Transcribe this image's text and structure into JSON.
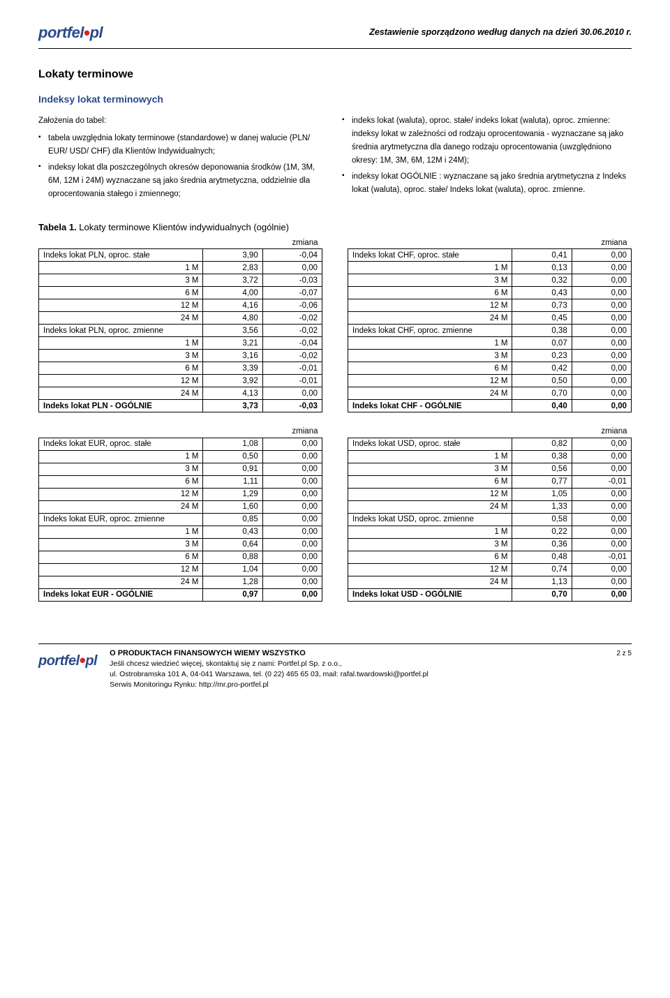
{
  "header": {
    "logo_main": "portfel",
    "logo_suffix": "pl",
    "meta_text": "Zestawienie sporządzono według danych na dzień 30.06.2010 r."
  },
  "section_title": "Lokaty terminowe",
  "subheading": "Indeksy lokat terminowych",
  "assumptions_title": "Założenia do tabel:",
  "left_bullets": [
    "tabela uwzględnia lokaty terminowe (standardowe) w danej walucie (PLN/ EUR/ USD/ CHF) dla Klientów Indywidualnych;",
    "indeksy lokat dla poszczególnych okresów deponowania środków (1M, 3M, 6M, 12M i 24M) wyznaczane są jako średnia arytmetyczna, oddzielnie dla oprocentowania stałego i zmiennego;"
  ],
  "right_bullets": [
    "indeks lokat (waluta), oproc. stałe/ indeks lokat (waluta), oproc. zmienne: indeksy lokat w zależności od rodzaju oprocentowania - wyznaczane są jako średnia arytmetyczna dla danego rodzaju oprocentowania (uwzględniono okresy: 1M, 3M, 6M, 12M i 24M);",
    "indeksy lokat OGÓLNIE : wyznaczane są jako średnia arytmetyczna z Indeks lokat (waluta), oproc. stałe/ Indeks lokat (waluta), oproc. zmienne."
  ],
  "table1_title_prefix": "Tabela 1.",
  "table1_title_rest": " Lokaty terminowe Klientów indywidualnych (ogólnie)",
  "zmiana_label": "zmiana",
  "tables": {
    "pln": {
      "rows": [
        {
          "label": "Indeks lokat PLN, oproc. stałe",
          "v": "3,90",
          "d": "-0,04",
          "align": "label"
        },
        {
          "label": "1 M",
          "v": "2,83",
          "d": "0,00",
          "align": "rlabel"
        },
        {
          "label": "3 M",
          "v": "3,72",
          "d": "-0,03",
          "align": "rlabel"
        },
        {
          "label": "6 M",
          "v": "4,00",
          "d": "-0,07",
          "align": "rlabel"
        },
        {
          "label": "12 M",
          "v": "4,16",
          "d": "-0,06",
          "align": "rlabel"
        },
        {
          "label": "24 M",
          "v": "4,80",
          "d": "-0,02",
          "align": "rlabel"
        },
        {
          "label": "Indeks lokat PLN, oproc. zmienne",
          "v": "3,56",
          "d": "-0,02",
          "align": "label"
        },
        {
          "label": "1 M",
          "v": "3,21",
          "d": "-0,04",
          "align": "rlabel"
        },
        {
          "label": "3 M",
          "v": "3,16",
          "d": "-0,02",
          "align": "rlabel"
        },
        {
          "label": "6 M",
          "v": "3,39",
          "d": "-0,01",
          "align": "rlabel"
        },
        {
          "label": "12 M",
          "v": "3,92",
          "d": "-0,01",
          "align": "rlabel"
        },
        {
          "label": "24 M",
          "v": "4,13",
          "d": "0,00",
          "align": "rlabel"
        }
      ],
      "total": {
        "label": "Indeks lokat PLN - OGÓLNIE",
        "v": "3,73",
        "d": "-0,03"
      }
    },
    "chf": {
      "rows": [
        {
          "label": "Indeks lokat CHF, oproc. stałe",
          "v": "0,41",
          "d": "0,00",
          "align": "label"
        },
        {
          "label": "1 M",
          "v": "0,13",
          "d": "0,00",
          "align": "rlabel"
        },
        {
          "label": "3 M",
          "v": "0,32",
          "d": "0,00",
          "align": "rlabel"
        },
        {
          "label": "6 M",
          "v": "0,43",
          "d": "0,00",
          "align": "rlabel"
        },
        {
          "label": "12 M",
          "v": "0,73",
          "d": "0,00",
          "align": "rlabel"
        },
        {
          "label": "24 M",
          "v": "0,45",
          "d": "0,00",
          "align": "rlabel"
        },
        {
          "label": "Indeks lokat CHF, oproc. zmienne",
          "v": "0,38",
          "d": "0,00",
          "align": "label"
        },
        {
          "label": "1 M",
          "v": "0,07",
          "d": "0,00",
          "align": "rlabel"
        },
        {
          "label": "3 M",
          "v": "0,23",
          "d": "0,00",
          "align": "rlabel"
        },
        {
          "label": "6 M",
          "v": "0,42",
          "d": "0,00",
          "align": "rlabel"
        },
        {
          "label": "12 M",
          "v": "0,50",
          "d": "0,00",
          "align": "rlabel"
        },
        {
          "label": "24 M",
          "v": "0,70",
          "d": "0,00",
          "align": "rlabel"
        }
      ],
      "total": {
        "label": "Indeks lokat CHF - OGÓLNIE",
        "v": "0,40",
        "d": "0,00"
      }
    },
    "eur": {
      "rows": [
        {
          "label": "Indeks lokat EUR, oproc. stałe",
          "v": "1,08",
          "d": "0,00",
          "align": "label"
        },
        {
          "label": "1 M",
          "v": "0,50",
          "d": "0,00",
          "align": "rlabel"
        },
        {
          "label": "3 M",
          "v": "0,91",
          "d": "0,00",
          "align": "rlabel"
        },
        {
          "label": "6 M",
          "v": "1,11",
          "d": "0,00",
          "align": "rlabel"
        },
        {
          "label": "12 M",
          "v": "1,29",
          "d": "0,00",
          "align": "rlabel"
        },
        {
          "label": "24 M",
          "v": "1,60",
          "d": "0,00",
          "align": "rlabel"
        },
        {
          "label": "Indeks lokat EUR, oproc. zmienne",
          "v": "0,85",
          "d": "0,00",
          "align": "label"
        },
        {
          "label": "1 M",
          "v": "0,43",
          "d": "0,00",
          "align": "rlabel"
        },
        {
          "label": "3 M",
          "v": "0,64",
          "d": "0,00",
          "align": "rlabel"
        },
        {
          "label": "6 M",
          "v": "0,88",
          "d": "0,00",
          "align": "rlabel"
        },
        {
          "label": "12 M",
          "v": "1,04",
          "d": "0,00",
          "align": "rlabel"
        },
        {
          "label": "24 M",
          "v": "1,28",
          "d": "0,00",
          "align": "rlabel"
        }
      ],
      "total": {
        "label": "Indeks lokat EUR - OGÓLNIE",
        "v": "0,97",
        "d": "0,00"
      }
    },
    "usd": {
      "rows": [
        {
          "label": "Indeks lokat USD, oproc. stałe",
          "v": "0,82",
          "d": "0,00",
          "align": "label"
        },
        {
          "label": "1 M",
          "v": "0,38",
          "d": "0,00",
          "align": "rlabel"
        },
        {
          "label": "3 M",
          "v": "0,56",
          "d": "0,00",
          "align": "rlabel"
        },
        {
          "label": "6 M",
          "v": "0,77",
          "d": "-0,01",
          "align": "rlabel"
        },
        {
          "label": "12 M",
          "v": "1,05",
          "d": "0,00",
          "align": "rlabel"
        },
        {
          "label": "24 M",
          "v": "1,33",
          "d": "0,00",
          "align": "rlabel"
        },
        {
          "label": "Indeks lokat USD, oproc. zmienne",
          "v": "0,58",
          "d": "0,00",
          "align": "label"
        },
        {
          "label": "1 M",
          "v": "0,22",
          "d": "0,00",
          "align": "rlabel"
        },
        {
          "label": "3 M",
          "v": "0,36",
          "d": "0,00",
          "align": "rlabel"
        },
        {
          "label": "6 M",
          "v": "0,48",
          "d": "-0,01",
          "align": "rlabel"
        },
        {
          "label": "12 M",
          "v": "0,74",
          "d": "0,00",
          "align": "rlabel"
        },
        {
          "label": "24 M",
          "v": "1,13",
          "d": "0,00",
          "align": "rlabel"
        }
      ],
      "total": {
        "label": "Indeks lokat USD - OGÓLNIE",
        "v": "0,70",
        "d": "0,00"
      }
    }
  },
  "footer": {
    "title": "O PRODUKTACH FINANSOWYCH WIEMY WSZYSTKO",
    "line1": "Jeśli chcesz wiedzieć więcej, skontaktuj się z nami: Portfel.pl Sp. z o.o.,",
    "line2": "ul. Ostrobramska 101 A, 04-041 Warszawa, tel. (0 22) 465 65 03, mail: rafal.twardowski@portfel.pl",
    "line3": "Serwis Monitoringu Rynku: http://mr.pro-portfel.pl",
    "page_num": "2 z 5"
  },
  "colors": {
    "brand_blue": "#2a4a8a",
    "brand_red": "#d22222",
    "text": "#000000",
    "bg": "#ffffff"
  }
}
